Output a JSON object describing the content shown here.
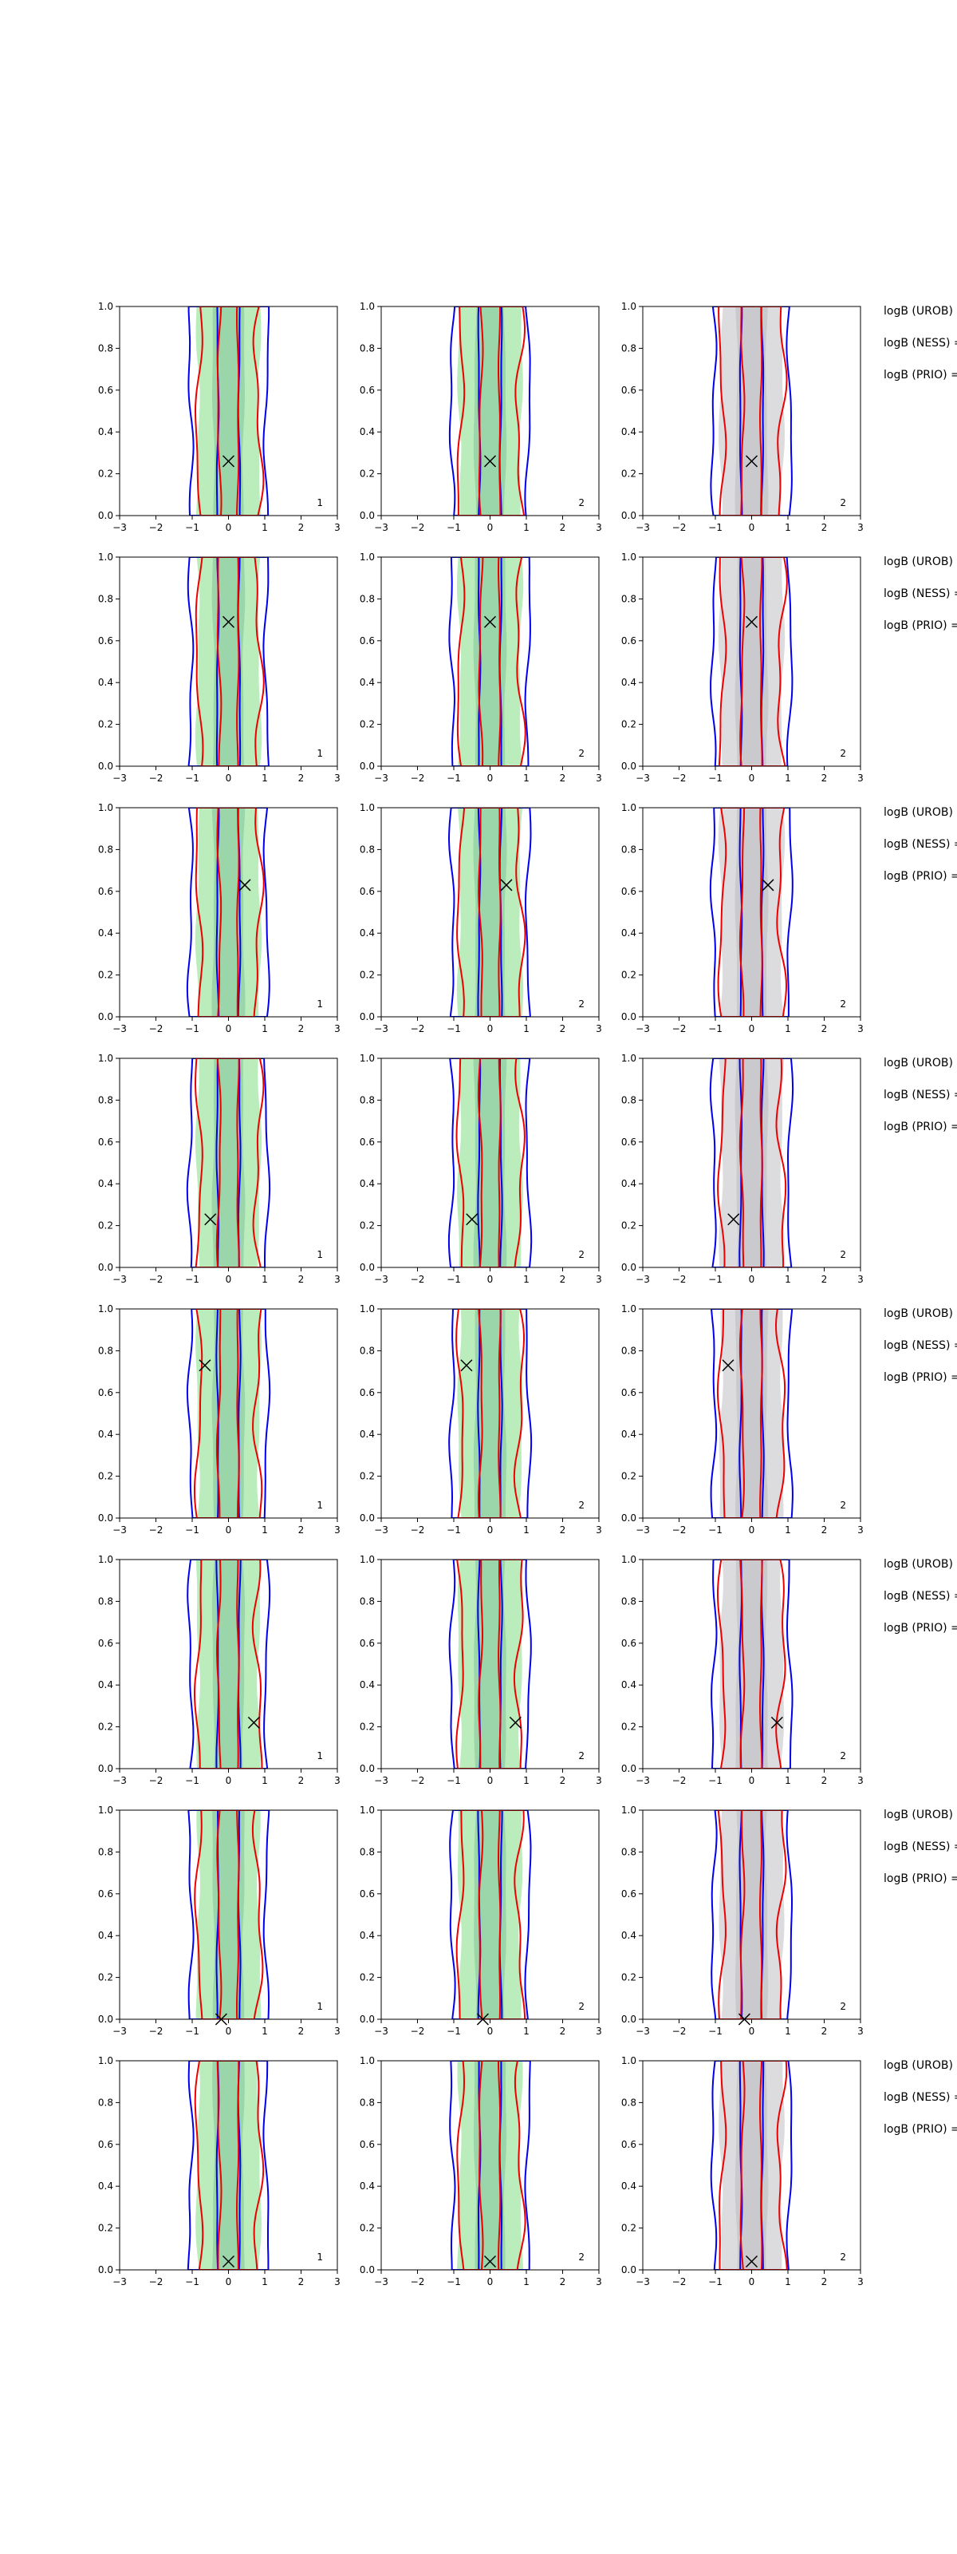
{
  "figure": {
    "x_ticks": [
      "−3",
      "−2",
      "−1",
      "0",
      "1",
      "2",
      "3"
    ],
    "y_ticks": [
      "0.0",
      "0.2",
      "0.4",
      "0.6",
      "0.8",
      "1.0"
    ],
    "side_labels": [
      "logB (UROB) =",
      "logB (NESS) =",
      "logB (PRIO) ="
    ],
    "colors": {
      "fill_green": "#b4eab4",
      "fill_gray": "#d8d8dc",
      "line_blue": "#0000ee",
      "line_red": "#ee0000",
      "marker": "#000000"
    }
  },
  "chart_data": [
    {
      "row": 1,
      "type": "contour",
      "xlim": [
        -3,
        3
      ],
      "ylim": [
        0,
        1
      ],
      "marker": {
        "x": 0.0,
        "y": 0.26
      },
      "panels": [
        {
          "column": 1,
          "corner_label": "1"
        },
        {
          "column": 2,
          "corner_label": "2"
        },
        {
          "column": 3,
          "corner_label": "2"
        }
      ]
    },
    {
      "row": 2,
      "type": "contour",
      "xlim": [
        -3,
        3
      ],
      "ylim": [
        0,
        1
      ],
      "marker": {
        "x": 0.0,
        "y": 0.69
      },
      "panels": [
        {
          "column": 1,
          "corner_label": "1"
        },
        {
          "column": 2,
          "corner_label": "2"
        },
        {
          "column": 3,
          "corner_label": "2"
        }
      ]
    },
    {
      "row": 3,
      "type": "contour",
      "xlim": [
        -3,
        3
      ],
      "ylim": [
        0,
        1
      ],
      "marker": {
        "x": 0.45,
        "y": 0.63
      },
      "panels": [
        {
          "column": 1,
          "corner_label": "1"
        },
        {
          "column": 2,
          "corner_label": "2"
        },
        {
          "column": 3,
          "corner_label": "2"
        }
      ]
    },
    {
      "row": 4,
      "type": "contour",
      "xlim": [
        -3,
        3
      ],
      "ylim": [
        0,
        1
      ],
      "marker": {
        "x": -0.5,
        "y": 0.23
      },
      "panels": [
        {
          "column": 1,
          "corner_label": "1"
        },
        {
          "column": 2,
          "corner_label": "2"
        },
        {
          "column": 3,
          "corner_label": "2"
        }
      ]
    },
    {
      "row": 5,
      "type": "contour",
      "xlim": [
        -3,
        3
      ],
      "ylim": [
        0,
        1
      ],
      "marker": {
        "x": -0.65,
        "y": 0.73
      },
      "panels": [
        {
          "column": 1,
          "corner_label": "1"
        },
        {
          "column": 2,
          "corner_label": "2"
        },
        {
          "column": 3,
          "corner_label": "2"
        }
      ]
    },
    {
      "row": 6,
      "type": "contour",
      "xlim": [
        -3,
        3
      ],
      "ylim": [
        0,
        1
      ],
      "marker": {
        "x": 0.7,
        "y": 0.22
      },
      "panels": [
        {
          "column": 1,
          "corner_label": "1"
        },
        {
          "column": 2,
          "corner_label": "2"
        },
        {
          "column": 3,
          "corner_label": "2"
        }
      ]
    },
    {
      "row": 7,
      "type": "contour",
      "xlim": [
        -3,
        3
      ],
      "ylim": [
        0,
        1
      ],
      "marker": {
        "x": -0.2,
        "y": 0.0
      },
      "panels": [
        {
          "column": 1,
          "corner_label": "1"
        },
        {
          "column": 2,
          "corner_label": "2"
        },
        {
          "column": 3,
          "corner_label": "2"
        }
      ]
    },
    {
      "row": 8,
      "type": "contour",
      "xlim": [
        -3,
        3
      ],
      "ylim": [
        0,
        1
      ],
      "marker": {
        "x": 0.0,
        "y": 0.04
      },
      "panels": [
        {
          "column": 1,
          "corner_label": "1"
        },
        {
          "column": 2,
          "corner_label": "2"
        },
        {
          "column": 3,
          "corner_label": "2"
        }
      ]
    }
  ]
}
